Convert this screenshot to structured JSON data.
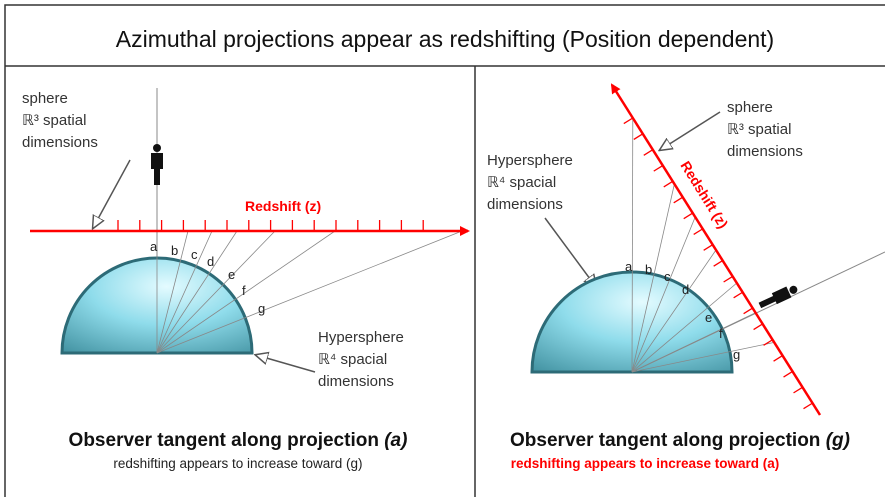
{
  "title": "Azimuthal projections appear as redshifting (Position dependent)",
  "panels": [
    {
      "sphere_label": [
        "sphere",
        "ℝ³ spatial",
        "dimensions"
      ],
      "hypersphere_label": [
        "Hypersphere",
        "ℝ⁴ spacial",
        "dimensions"
      ],
      "axis_label": "Redshift (z)",
      "points": [
        "a",
        "b",
        "c",
        "d",
        "e",
        "f",
        "g"
      ],
      "caption": "Observer tangent along projection ",
      "caption_mark": "(a)",
      "subcaption": "redshifting appears to increase toward (g)"
    },
    {
      "sphere_label": [
        "sphere",
        "ℝ³ spatial",
        "dimensions"
      ],
      "hypersphere_label": [
        "Hypersphere",
        "ℝ⁴ spacial",
        "dimensions"
      ],
      "axis_label": "Redshift (z)",
      "points": [
        "a",
        "b",
        "c",
        "d",
        "e",
        "f",
        "g"
      ],
      "caption": "Observer tangent along projection ",
      "caption_mark": "(g)",
      "subcaption": "redshifting appears to increase toward (a)"
    }
  ]
}
